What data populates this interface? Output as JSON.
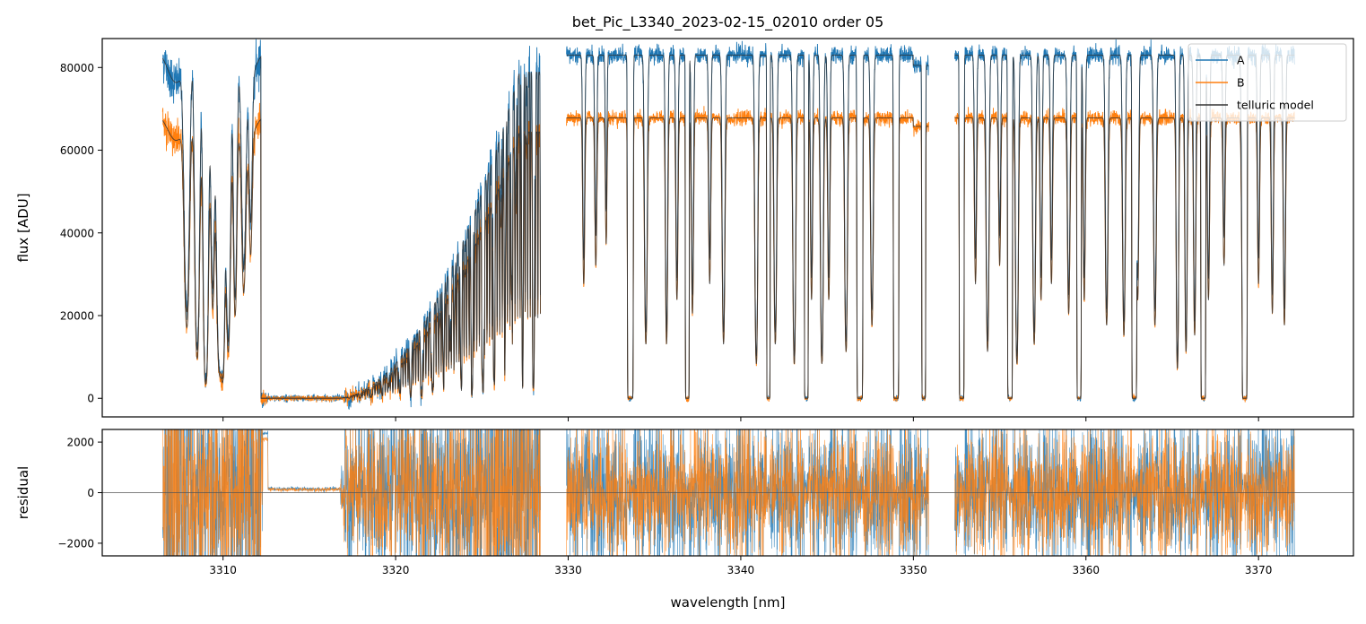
{
  "chart_data": [
    {
      "panel": "top",
      "type": "line",
      "title": "bet_Pic_L3340_2023-02-15_02010  order 05",
      "xlabel": "",
      "ylabel": "flux [ADU]",
      "xlim": [
        3303.0,
        3375.5
      ],
      "ylim": [
        -4500,
        87000
      ],
      "yticks": [
        0,
        20000,
        40000,
        60000,
        80000
      ],
      "grid": false,
      "legend": "top-right",
      "segments": [
        [
          3306.5,
          3328.4
        ],
        [
          3329.9,
          3350.9
        ],
        [
          3352.4,
          3372.1
        ]
      ],
      "series": [
        {
          "name": "A",
          "color": "#1f77b4",
          "continuum": 83000
        },
        {
          "name": "B",
          "color": "#ff7f0e",
          "continuum": 67800
        },
        {
          "name": "telluric model",
          "color": "#333333"
        }
      ]
    },
    {
      "panel": "bottom",
      "type": "line",
      "title": "",
      "xlabel": "wavelength [nm]",
      "ylabel": "residual",
      "xlim": [
        3303.0,
        3375.5
      ],
      "ylim": [
        -2500,
        2500
      ],
      "xticks": [
        3310,
        3320,
        3330,
        3340,
        3350,
        3360,
        3370
      ],
      "yticks": [
        -2000,
        0,
        2000
      ],
      "zero_line": 0,
      "series": [
        {
          "name": "A",
          "color": "#1f77b4"
        },
        {
          "name": "B",
          "color": "#ff7f0e"
        }
      ]
    }
  ]
}
